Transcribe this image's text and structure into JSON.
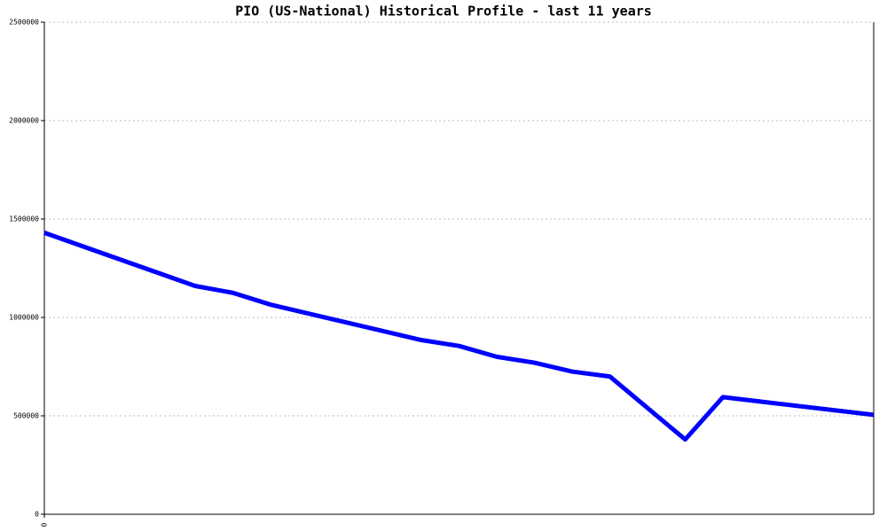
{
  "chart_data": {
    "type": "line",
    "title": "PIO (US-National) Historical Profile - last 11 years",
    "x": [
      0,
      2,
      2.5,
      3,
      5,
      5.5,
      6,
      6.5,
      7,
      7.5,
      8.5,
      9,
      11
    ],
    "series": [
      {
        "color": "#0000ff",
        "values": [
          1430000,
          1160000,
          1125000,
          1065000,
          885000,
          855000,
          800000,
          770000,
          725000,
          700000,
          380000,
          595000,
          505000
        ]
      }
    ],
    "xlim": [
      0,
      11
    ],
    "xticks": [
      0
    ],
    "ylim": [
      0,
      2500000
    ],
    "yticks": [
      0,
      500000,
      1000000,
      1500000,
      2000000,
      2500000
    ],
    "grid": true
  }
}
